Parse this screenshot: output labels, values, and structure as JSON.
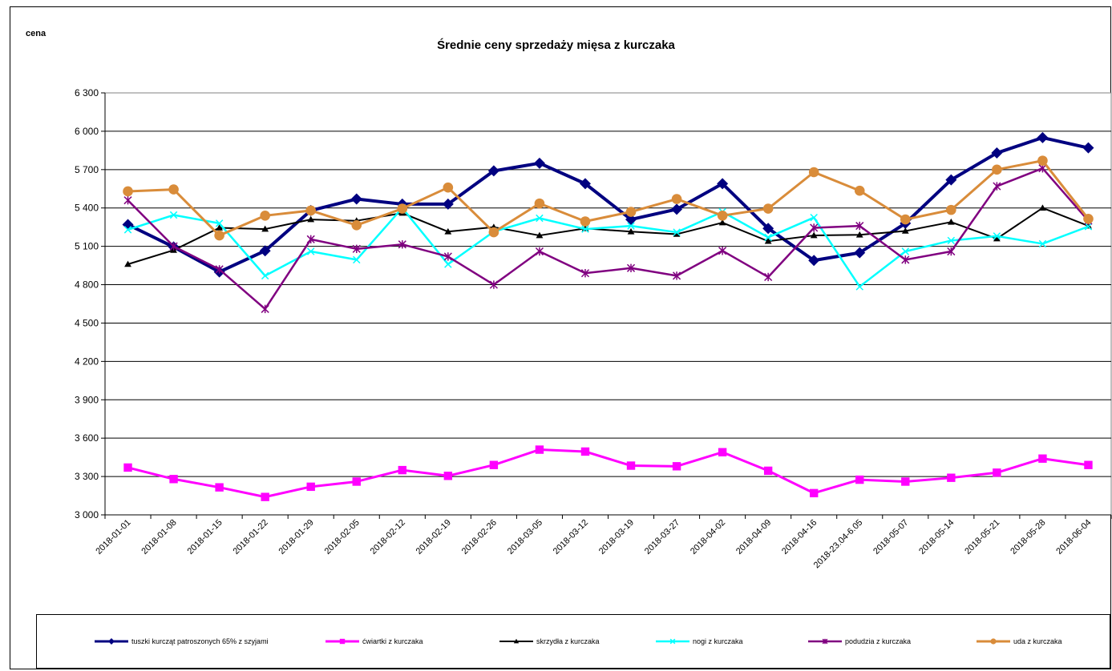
{
  "chart_data": {
    "type": "line",
    "title": "Średnie ceny sprzedaży mięsa z kurczaka",
    "ylabel": "cena",
    "xlabel": "",
    "ylim": [
      3000,
      6300
    ],
    "yticks": [
      "3 000",
      "3 300",
      "3 600",
      "3 900",
      "4 200",
      "4 500",
      "4 800",
      "5 100",
      "5 400",
      "5 700",
      "6 000",
      "6 300"
    ],
    "grid": "horizontal",
    "legend_position": "bottom",
    "categories": [
      "2018-01-01",
      "2018-01-08",
      "2018-01-15",
      "2018-01-22",
      "2018-01-29",
      "2018-02-05",
      "2018-02-12",
      "2018-02-19",
      "2018-02-26",
      "2018-03-05",
      "2018-03-12",
      "2018-03-19",
      "2018-03-27",
      "2018-04-02",
      "2018-04-09",
      "2018-04-16",
      "2018-23.04-6.05",
      "2018-05-07",
      "2018-05-14",
      "2018-05-21",
      "2018-05-28",
      "2018-06-04"
    ],
    "series": [
      {
        "name": "tuszki kurcząt patroszonych 65% z szyjami",
        "color": "#000080",
        "marker": "diamond",
        "values": [
          5270,
          5095,
          4900,
          5065,
          5380,
          5470,
          5430,
          5430,
          5690,
          5750,
          5590,
          5310,
          5390,
          5590,
          5240,
          4990,
          5050,
          5280,
          5620,
          5830,
          5950,
          5870
        ]
      },
      {
        "name": "ćwiartki z kurczaka",
        "color": "#FF00FF",
        "marker": "square",
        "values": [
          3370,
          3280,
          3215,
          3140,
          3220,
          3260,
          3350,
          3305,
          3390,
          3510,
          3495,
          3385,
          3380,
          3490,
          3345,
          3170,
          3275,
          3260,
          3290,
          3330,
          3440,
          3390
        ]
      },
      {
        "name": "skrzydła z kurczaka",
        "color": "#000000",
        "marker": "triangle",
        "values": [
          4960,
          5070,
          5245,
          5235,
          5310,
          5300,
          5360,
          5215,
          5250,
          5185,
          5240,
          5215,
          5195,
          5285,
          5140,
          5185,
          5190,
          5220,
          5290,
          5160,
          5400,
          5260
        ]
      },
      {
        "name": "nogi z kurczaka",
        "color": "#00FFFF",
        "marker": "x",
        "values": [
          5230,
          5345,
          5280,
          4870,
          5060,
          4995,
          5400,
          4960,
          5215,
          5320,
          5235,
          5260,
          5210,
          5370,
          5170,
          5325,
          4785,
          5060,
          5145,
          5180,
          5120,
          5255
        ]
      },
      {
        "name": "podudzia z kurczaka",
        "color": "#800080",
        "marker": "star",
        "values": [
          5460,
          5100,
          4920,
          4610,
          5155,
          5080,
          5115,
          5020,
          4800,
          5060,
          4890,
          4930,
          4870,
          5065,
          4860,
          5245,
          5260,
          4995,
          5060,
          5570,
          5710,
          5300
        ]
      },
      {
        "name": "uda z kurczaka",
        "color": "#D98C3A",
        "marker": "circle",
        "values": [
          5530,
          5545,
          5185,
          5340,
          5380,
          5265,
          5395,
          5560,
          5210,
          5435,
          5295,
          5370,
          5470,
          5340,
          5395,
          5680,
          5535,
          5310,
          5385,
          5700,
          5770,
          5315
        ]
      }
    ]
  }
}
